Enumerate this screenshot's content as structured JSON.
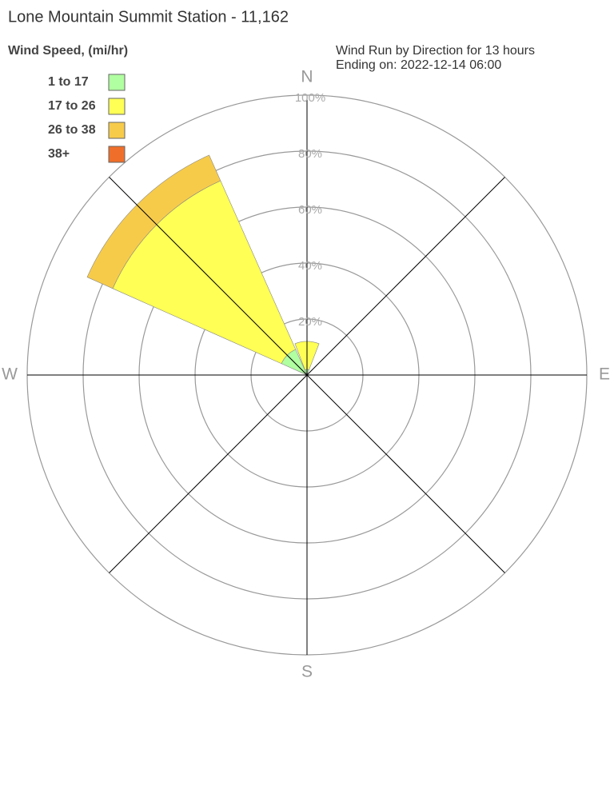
{
  "chart_data": {
    "type": "windrose",
    "title": "Lone Mountain Summit Station - 11,162",
    "subtitle": [
      "Wind Run by Direction for 13 hours",
      "Ending on: 2022-12-14 06:00"
    ],
    "legend_title": "Wind Speed, (mi/hr)",
    "categories": [
      "N",
      null,
      "E",
      null,
      "S",
      null,
      "W",
      null
    ],
    "series": [
      {
        "name": "1 to 17",
        "color": "#b0ffa0",
        "values": [
          2,
          0,
          0,
          0,
          0,
          0,
          0,
          10
        ]
      },
      {
        "name": "17 to 26",
        "color": "#ffff55",
        "values": [
          10,
          0,
          0,
          0,
          0,
          0,
          0,
          66
        ]
      },
      {
        "name": "26 to 38",
        "color": "#f7cb4a",
        "values": [
          0,
          0,
          0,
          0,
          0,
          0,
          0,
          10
        ]
      },
      {
        "name": "38+",
        "color": "#ef6f2a",
        "values": [
          0,
          0,
          0,
          0,
          0,
          0,
          0,
          0
        ]
      }
    ],
    "ylim": [
      0,
      100
    ],
    "yticks": [
      {
        "value": 20,
        "label": "20%"
      },
      {
        "value": 40,
        "label": "40%"
      },
      {
        "value": 60,
        "label": "60%"
      },
      {
        "value": 80,
        "label": "80%"
      },
      {
        "value": 100,
        "label": "100%"
      }
    ]
  }
}
